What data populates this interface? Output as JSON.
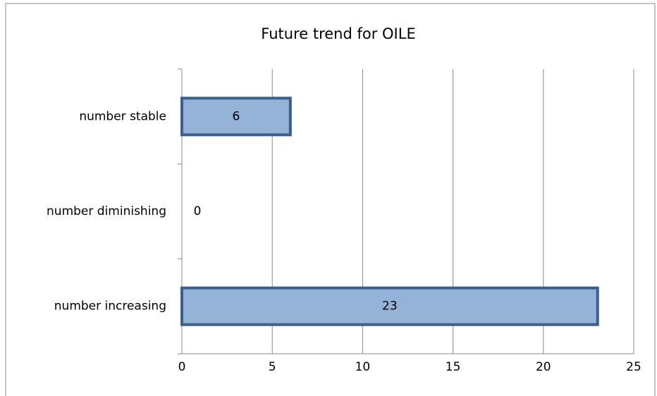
{
  "chart_data": {
    "type": "bar",
    "orientation": "horizontal",
    "title": "Future trend for OILE",
    "categories": [
      "number stable",
      "number diminishing",
      "number increasing"
    ],
    "values": [
      6,
      0,
      23
    ],
    "color": "#95b3d7",
    "edge_color": "#3a5f8f",
    "xlim": [
      0,
      25
    ],
    "xticks": [
      0,
      5,
      10,
      15,
      20,
      25
    ],
    "grid": true
  }
}
